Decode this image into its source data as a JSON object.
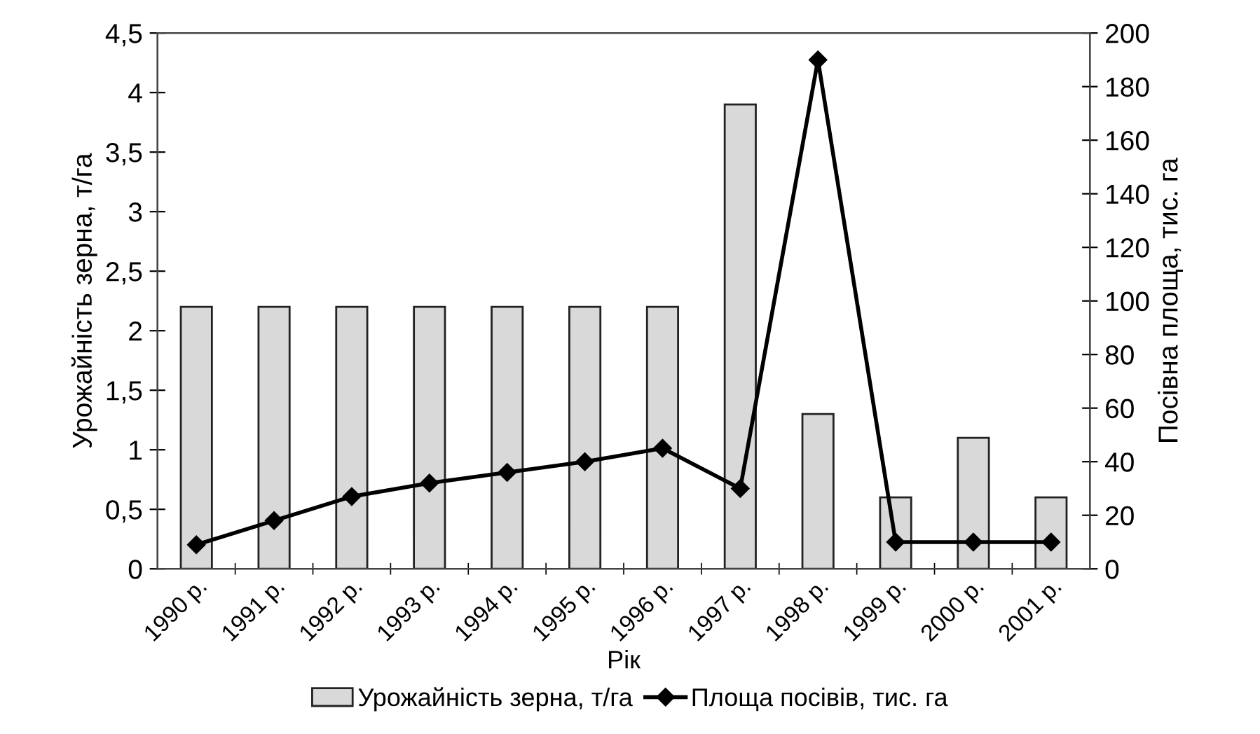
{
  "chart_data": {
    "type": "bar",
    "xlabel": "Рік",
    "ylabel": "Урожайність зерна, т/га",
    "y2label": "Посівна площа, тис. га",
    "categories": [
      "1990 р.",
      "1991 р.",
      "1992 р.",
      "1993 р.",
      "1994 р.",
      "1995 р.",
      "1996 р.",
      "1997 р.",
      "1998 р.",
      "1999 р.",
      "2000 р.",
      "2001 р."
    ],
    "series": [
      {
        "name": "Урожайність зерна, т/га",
        "color": "#d9d9d9",
        "values": [
          2.2,
          2.2,
          2.2,
          2.2,
          2.2,
          2.2,
          2.2,
          3.9,
          1.3,
          0.6,
          1.1,
          0.6
        ]
      },
      {
        "name": "Площа посівів, тис. га",
        "type": "line",
        "axis": "y2",
        "color": "#000000",
        "marker": "diamond",
        "values": [
          9,
          18,
          27,
          32,
          36,
          40,
          45,
          30,
          190,
          10,
          10,
          10
        ]
      }
    ],
    "ylim": [
      0,
      4.5
    ],
    "yticks": [
      0,
      {
        "value": 0.5,
        "label": "0,5"
      },
      1,
      {
        "value": 1.5,
        "label": "1,5"
      },
      2,
      {
        "value": 2.5,
        "label": "2,5"
      },
      3,
      {
        "value": 3.5,
        "label": "3,5"
      },
      4,
      {
        "value": 4.5,
        "label": "4,5"
      }
    ],
    "y2lim": [
      0,
      200
    ],
    "y2ticks": [
      0,
      20,
      40,
      60,
      80,
      100,
      120,
      140,
      160,
      180,
      200
    ],
    "grid": false,
    "legend": "bottom"
  }
}
